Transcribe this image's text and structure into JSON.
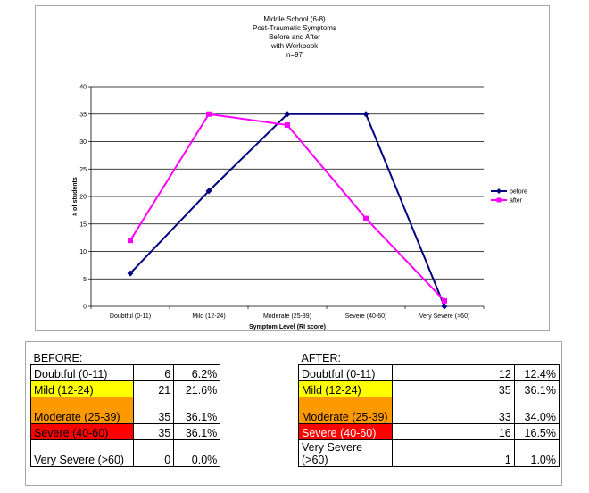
{
  "chart_data": {
    "type": "line",
    "title_lines": [
      "Middle School (6-8)",
      "Post-Traumatic Symptoms",
      "Before and After",
      "with Workbook",
      "n=97"
    ],
    "xlabel": "Symptom Level (RI score)",
    "ylabel": "# of students",
    "categories": [
      "Doubtful (0-11)",
      "Mild (12-24)",
      "Moderate (25-39)",
      "Severe (40-60)",
      "Very Severe (>60)"
    ],
    "ylim": [
      0,
      40
    ],
    "yticks": [
      "0",
      "5",
      "10",
      "15",
      "20",
      "25",
      "30",
      "35",
      "40"
    ],
    "grid": true,
    "legend_position": "right",
    "series": [
      {
        "name": "before",
        "values": [
          6,
          21,
          35,
          35,
          0
        ],
        "color": "#000080",
        "marker": "diamond"
      },
      {
        "name": "after",
        "values": [
          12,
          35,
          33,
          16,
          1
        ],
        "color": "#ff00ff",
        "marker": "square"
      }
    ]
  },
  "table": {
    "before": {
      "heading": "BEFORE:",
      "rows": [
        {
          "label": "Doubtful (0-11)",
          "count": "6",
          "pct": "6.2%",
          "color": "#ffffff",
          "text_color": "#000000"
        },
        {
          "label": "Mild (12-24)",
          "count": "21",
          "pct": "21.6%",
          "color": "#ffff00",
          "text_color": "#000000"
        },
        {
          "label": "Moderate (25-39)",
          "count": "35",
          "pct": "36.1%",
          "color": "#ff9900",
          "text_color": "#000000"
        },
        {
          "label": "Severe (40-60)",
          "count": "35",
          "pct": "36.1%",
          "color": "#ff0000",
          "text_color": "#000000"
        },
        {
          "label": "Very Severe (>60)",
          "count": "0",
          "pct": "0.0%",
          "color": "#ffffff",
          "text_color": "#000000"
        }
      ]
    },
    "after": {
      "heading": "AFTER:",
      "rows": [
        {
          "label": "Doubtful (0-11)",
          "count": "12",
          "pct": "12.4%",
          "color": "#ffffff",
          "text_color": "#000000"
        },
        {
          "label": "Mild (12-24)",
          "count": "35",
          "pct": "36.1%",
          "color": "#ffff00",
          "text_color": "#000000"
        },
        {
          "label": "Moderate (25-39)",
          "count": "33",
          "pct": "34.0%",
          "color": "#ff9900",
          "text_color": "#000000"
        },
        {
          "label": "Severe (40-60)",
          "count": "16",
          "pct": "16.5%",
          "color": "#ff0000",
          "text_color": "#ffffff"
        },
        {
          "label": "Very Severe (>60)",
          "count": "1",
          "pct": "1.0%",
          "color": "#ffffff",
          "text_color": "#000000"
        }
      ]
    }
  }
}
